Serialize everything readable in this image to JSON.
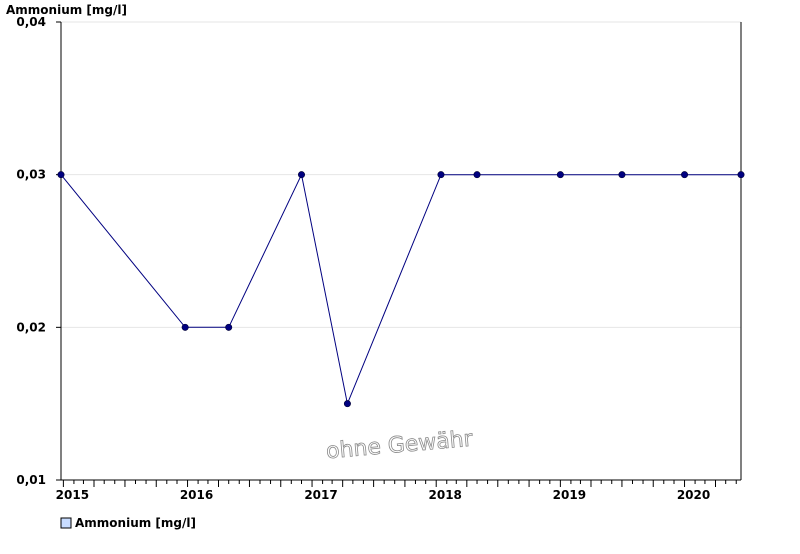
{
  "chart_data": {
    "type": "line",
    "title": "Ammonium [mg/l]",
    "xlabel": "",
    "ylabel": "",
    "x_ticks": [
      "2015",
      "2016",
      "2017",
      "2018",
      "2019",
      "2020"
    ],
    "y_ticks": [
      "0,01",
      "0,02",
      "0,03",
      "0,04"
    ],
    "ylim": [
      0.01,
      0.04
    ],
    "xlim": [
      "2014-12-25",
      "2020-06-15"
    ],
    "grid": true,
    "legend": "bottom-left",
    "series": [
      {
        "name": "Ammonium [mg/l]",
        "color": "#000080",
        "x": [
          "2014-12-25",
          "2015-12-25",
          "2016-05-01",
          "2016-12-01",
          "2017-04-15",
          "2018-01-15",
          "2018-05-01",
          "2019-01-01",
          "2019-07-01",
          "2020-01-01",
          "2020-06-15"
        ],
        "y": [
          0.03,
          0.02,
          0.02,
          0.03,
          0.015,
          0.03,
          0.03,
          0.03,
          0.03,
          0.03,
          0.03
        ]
      }
    ]
  },
  "watermark": "ohne Gewähr"
}
